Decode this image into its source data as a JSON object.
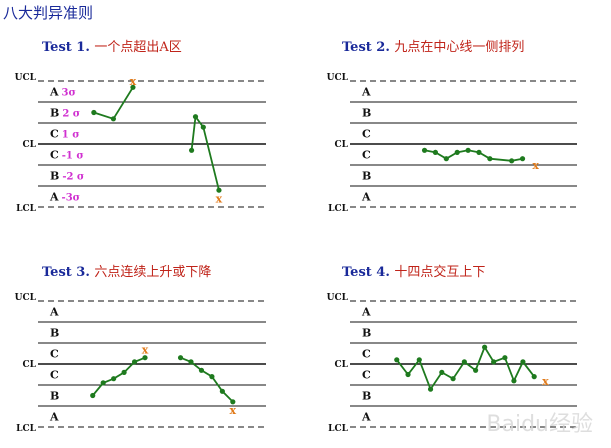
{
  "page_title": "八大判异准则",
  "watermark": "Baidu经验",
  "line_color": "#1e7a1e",
  "mark_color": "#e07a1a",
  "sigma_color": "#d030d0",
  "panels": [
    {
      "number": "Test 1.",
      "title": "一个点超出A区",
      "control_labels": [
        "UCL",
        "CL",
        "LCL"
      ],
      "zones": [
        {
          "letter": "A",
          "sigma": "3σ"
        },
        {
          "letter": "B",
          "sigma": "2 σ"
        },
        {
          "letter": "C",
          "sigma": "1 σ"
        },
        {
          "letter": "C",
          "sigma": "-1 σ"
        },
        {
          "letter": "B",
          "sigma": "-2 σ"
        },
        {
          "letter": "A",
          "sigma": "-3σ"
        }
      ],
      "series": [
        {
          "x": [
            0,
            1,
            2
          ],
          "y": [
            1.5,
            1.2,
            2.7
          ]
        },
        {
          "x": [
            5,
            5.2,
            5.6,
            6.4
          ],
          "y": [
            -0.3,
            1.3,
            0.8,
            -2.2
          ]
        }
      ],
      "marks": [
        {
          "label": "x",
          "x": 2,
          "y": 3.0
        },
        {
          "label": "x",
          "x": 6.4,
          "y": -2.6
        }
      ],
      "xlim": [
        -0.3,
        8.5
      ]
    },
    {
      "number": "Test 2.",
      "title": "九点在中心线一侧排列",
      "control_labels": [
        "UCL",
        "CL",
        "LCL"
      ],
      "zones": [
        {
          "letter": "A",
          "sigma": ""
        },
        {
          "letter": "B",
          "sigma": ""
        },
        {
          "letter": "C",
          "sigma": ""
        },
        {
          "letter": "C",
          "sigma": ""
        },
        {
          "letter": "B",
          "sigma": ""
        },
        {
          "letter": "A",
          "sigma": ""
        }
      ],
      "series": [
        {
          "x": [
            0,
            0.5,
            1,
            1.5,
            2,
            2.5,
            3,
            4,
            4.5
          ],
          "y": [
            -0.3,
            -0.4,
            -0.7,
            -0.4,
            -0.3,
            -0.4,
            -0.7,
            -0.8,
            -0.7
          ]
        }
      ],
      "marks": [
        {
          "label": "x",
          "x": 5.1,
          "y": -1.0
        }
      ],
      "xlim": [
        -0.3,
        7
      ]
    },
    {
      "number": "Test 3.",
      "title": "六点连续上升或下降",
      "control_labels": [
        "UCL",
        "CL",
        "LCL"
      ],
      "zones": [
        {
          "letter": "A",
          "sigma": ""
        },
        {
          "letter": "B",
          "sigma": ""
        },
        {
          "letter": "C",
          "sigma": ""
        },
        {
          "letter": "C",
          "sigma": ""
        },
        {
          "letter": "B",
          "sigma": ""
        },
        {
          "letter": "A",
          "sigma": ""
        }
      ],
      "series": [
        {
          "x": [
            0,
            0.5,
            1,
            1.5,
            2,
            2.5
          ],
          "y": [
            -1.5,
            -0.9,
            -0.7,
            -0.4,
            0.1,
            0.3
          ]
        },
        {
          "x": [
            4.2,
            4.7,
            5.2,
            5.7,
            6.2,
            6.7
          ],
          "y": [
            0.3,
            0.1,
            -0.3,
            -0.6,
            -1.3,
            -1.8
          ]
        }
      ],
      "marks": [
        {
          "label": "x",
          "x": 2.5,
          "y": 0.7
        },
        {
          "label": "x",
          "x": 6.7,
          "y": -2.2
        }
      ],
      "xlim": [
        -0.8,
        8
      ]
    },
    {
      "number": "Test 4.",
      "title": "十四点交互上下",
      "control_labels": [
        "UCL",
        "CL",
        "LCL"
      ],
      "zones": [
        {
          "letter": "A",
          "sigma": ""
        },
        {
          "letter": "B",
          "sigma": ""
        },
        {
          "letter": "C",
          "sigma": ""
        },
        {
          "letter": "C",
          "sigma": ""
        },
        {
          "letter": "B",
          "sigma": ""
        },
        {
          "letter": "A",
          "sigma": ""
        }
      ],
      "series": [
        {
          "x": [
            0,
            0.5,
            1,
            1.5,
            2,
            2.5,
            3,
            3.5,
            3.9,
            4.3,
            4.8,
            5.2,
            5.6,
            6.1
          ],
          "y": [
            0.2,
            -0.5,
            0.2,
            -1.2,
            -0.4,
            -0.7,
            0.1,
            -0.3,
            0.8,
            0.1,
            0.3,
            -0.8,
            0.1,
            -0.6
          ]
        }
      ],
      "marks": [
        {
          "label": "x",
          "x": 6.6,
          "y": -0.8
        }
      ],
      "xlim": [
        -0.3,
        8
      ]
    }
  ]
}
